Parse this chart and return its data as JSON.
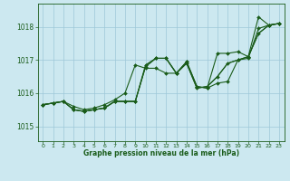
{
  "title": "Graphe pression niveau de la mer (hPa)",
  "bg_color": "#cce8f0",
  "line_color": "#1a5c1a",
  "grid_color": "#9dc8d8",
  "xlim": [
    -0.5,
    23.5
  ],
  "ylim": [
    1014.55,
    1018.7
  ],
  "yticks": [
    1015,
    1016,
    1017,
    1018
  ],
  "xticks": [
    0,
    1,
    2,
    3,
    4,
    5,
    6,
    7,
    8,
    9,
    10,
    11,
    12,
    13,
    14,
    15,
    16,
    17,
    18,
    19,
    20,
    21,
    22,
    23
  ],
  "series": [
    {
      "y": [
        1015.65,
        1015.7,
        1015.75,
        1015.5,
        1015.45,
        1015.5,
        1015.55,
        1015.75,
        1015.75,
        1015.75,
        1016.85,
        1017.05,
        1017.05,
        1016.6,
        1016.95,
        1016.2,
        1016.15,
        1016.3,
        1016.35,
        1017.0,
        1017.05,
        1017.95,
        1018.05,
        1018.1
      ],
      "markers": true
    },
    {
      "y": [
        1015.65,
        1015.7,
        1015.75,
        1015.5,
        1015.45,
        1015.5,
        1015.55,
        1015.75,
        1015.75,
        1015.75,
        1016.8,
        1017.05,
        1017.05,
        1016.6,
        1016.9,
        1016.15,
        1016.2,
        1016.5,
        1016.9,
        1017.0,
        1017.1,
        1017.8,
        1018.05,
        1018.1
      ],
      "markers": true
    },
    {
      "y": [
        1015.65,
        1015.7,
        1015.75,
        1015.5,
        1015.45,
        1015.5,
        1015.55,
        1015.75,
        1015.75,
        1015.75,
        1016.8,
        1017.05,
        1017.05,
        1016.6,
        1016.9,
        1016.15,
        1016.2,
        1016.5,
        1016.9,
        1017.0,
        1017.1,
        1017.8,
        1018.05,
        1018.1
      ],
      "markers": false
    },
    {
      "y": [
        1015.65,
        1015.7,
        1015.75,
        1015.6,
        1015.5,
        1015.55,
        1015.65,
        1015.8,
        1016.0,
        1016.85,
        1016.75,
        1016.75,
        1016.6,
        1016.6,
        1016.95,
        1016.2,
        1016.15,
        1017.2,
        1017.2,
        1017.25,
        1017.1,
        1018.3,
        1018.05,
        1018.1
      ],
      "markers": true
    }
  ]
}
